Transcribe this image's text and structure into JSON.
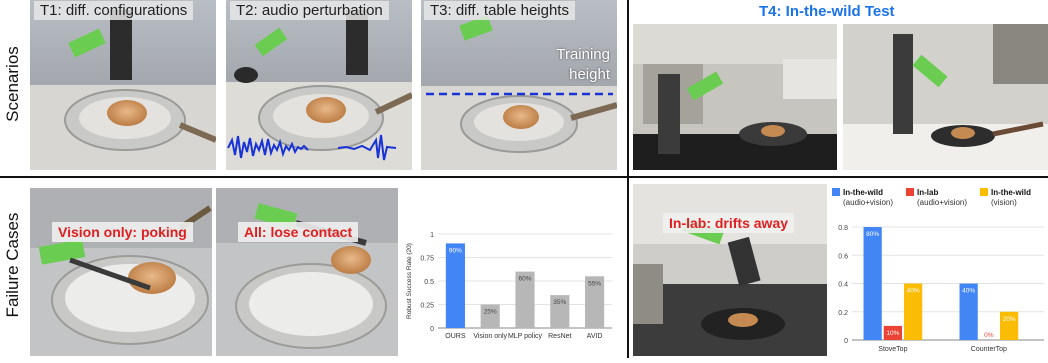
{
  "rows": {
    "top": "Scenarios",
    "bottom": "Failure Cases"
  },
  "scenarios": [
    {
      "label": "T1: diff. configurations"
    },
    {
      "label": "T2: audio perturbation"
    },
    {
      "label": "T3: diff. table heights",
      "annotation": "Training height"
    },
    {
      "label": "T4: In-the-wild Test"
    }
  ],
  "failures": [
    {
      "label": "Vision only: poking"
    },
    {
      "label": "All: lose contact"
    },
    {
      "label": "In-lab: drifts away"
    }
  ],
  "chart_data": [
    {
      "type": "bar",
      "ylabel": "Robust Success Rate (20)",
      "categories": [
        "OURS",
        "Vision only",
        "MLP policy",
        "ResNet",
        "AVID"
      ],
      "values": [
        0.9,
        0.25,
        0.6,
        0.35,
        0.55
      ],
      "data_labels": [
        "90%",
        "25%",
        "60%",
        "35%",
        "55%"
      ],
      "yticks": [
        "0",
        "0.25",
        "0.5",
        "0.75",
        "1"
      ],
      "ylim": [
        0,
        1
      ],
      "colors": [
        "#4285f4",
        "#b7b7b7",
        "#b7b7b7",
        "#b7b7b7",
        "#b7b7b7"
      ]
    },
    {
      "type": "bar",
      "categories": [
        "StoveTop",
        "CounterTop"
      ],
      "series": [
        {
          "name": "In-the-wild",
          "sub": "(audio+vision)",
          "values": [
            0.8,
            0.4
          ],
          "data_labels": [
            "80%",
            "40%"
          ],
          "color": "#4285f4"
        },
        {
          "name": "In-lab",
          "sub": "(audio+vision)",
          "values": [
            0.1,
            0.0
          ],
          "data_labels": [
            "10%",
            "0%"
          ],
          "color": "#ea4335"
        },
        {
          "name": "In-the-wild",
          "sub": "(vision)",
          "values": [
            0.4,
            0.2
          ],
          "data_labels": [
            "40%",
            "20%"
          ],
          "color": "#fbbc04"
        }
      ],
      "yticks": [
        "0",
        "0.2",
        "0.4",
        "0.6",
        "0.8"
      ],
      "ylim": [
        0,
        0.85
      ],
      "legend": "top"
    }
  ]
}
